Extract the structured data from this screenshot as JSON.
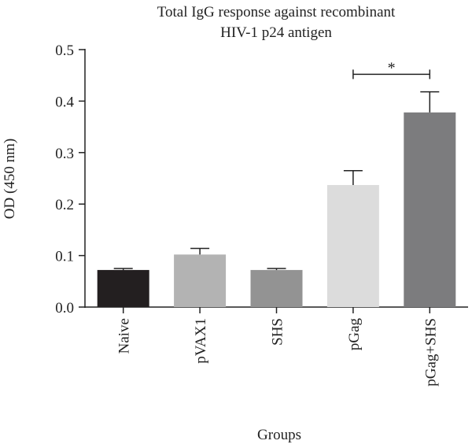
{
  "chart_data": {
    "type": "bar",
    "title_lines": [
      "Total IgG response against recombinant",
      "HIV-1 p24 antigen"
    ],
    "xlabel": "Groups",
    "ylabel": "OD (450 nm)",
    "ylim": [
      0,
      0.5
    ],
    "yticks": [
      "0.0",
      "0.1",
      "0.2",
      "0.3",
      "0.4",
      "0.5"
    ],
    "grid": false,
    "legend": "none",
    "categories": [
      "Naive",
      "pVAX1",
      "SHS",
      "pGag",
      "pGag+SHS"
    ],
    "values": [
      0.072,
      0.102,
      0.072,
      0.237,
      0.378
    ],
    "errors": [
      0.003,
      0.012,
      0.003,
      0.028,
      0.04
    ],
    "colors": [
      "#231f20",
      "#b3b3b3",
      "#939393",
      "#dcdcdc",
      "#7c7c7e"
    ],
    "significance": {
      "from": "pGag",
      "to": "pGag+SHS",
      "label": "*",
      "level": 0.452
    }
  }
}
